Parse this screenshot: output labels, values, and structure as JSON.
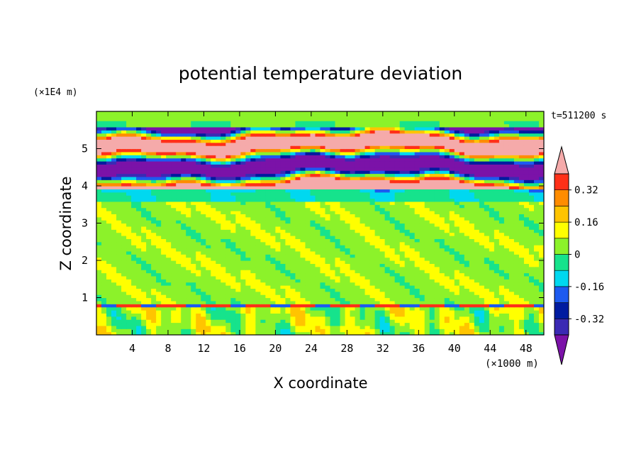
{
  "chart_data": {
    "type": "heatmap",
    "title": "potential temperature deviation",
    "xlabel": "X coordinate",
    "ylabel": "Z coordinate",
    "x_unit": "(×1000 m)",
    "y_unit": "(×1E4 m)",
    "time_label": "t=511200 s",
    "xlim": [
      0,
      50
    ],
    "ylim": [
      0,
      6
    ],
    "x_ticks": [
      4,
      8,
      12,
      16,
      20,
      24,
      28,
      32,
      36,
      40,
      44,
      48
    ],
    "y_ticks": [
      1,
      2,
      3,
      4,
      5
    ],
    "colorbar": {
      "levels": [
        -0.4,
        -0.32,
        -0.24,
        -0.16,
        -0.08,
        0,
        0.08,
        0.16,
        0.24,
        0.32,
        0.4
      ],
      "tick_labels": [
        "0.32",
        "0.16",
        "0",
        "-0.16",
        "-0.32"
      ],
      "tick_values": [
        0.32,
        0.16,
        0,
        -0.16,
        -0.32
      ],
      "colors_bottom_to_top": [
        "#7B12A8",
        "#3B2AB4",
        "#001BA0",
        "#1D5AF0",
        "#00D8F0",
        "#16E38C",
        "#8CF22A",
        "#FFFF00",
        "#FFC400",
        "#FF8C00",
        "#FF3018",
        "#F5AAAA"
      ],
      "extend": "both"
    },
    "bands": [
      {
        "z_from": 0.0,
        "z_to": 0.8,
        "pattern": "turbulent",
        "dominant": "#8CF22A",
        "secondary": [
          "#16E38C",
          "#FFFF00",
          "#00D8F0"
        ]
      },
      {
        "z_from": 0.8,
        "z_to": 0.85,
        "pattern": "thin inversion line",
        "dominant": "#FF3018",
        "secondary": [
          "#1D5AF0",
          "#001BA0"
        ]
      },
      {
        "z_from": 0.85,
        "z_to": 3.7,
        "pattern": "wavy layers",
        "dominant": "#8CF22A",
        "secondary": [
          "#16E38C"
        ]
      },
      {
        "z_from": 3.7,
        "z_to": 4.0,
        "pattern": "stable layer",
        "dominant": "#16E38C",
        "secondary": [
          "#00D8F0",
          "#1D5AF0"
        ]
      },
      {
        "z_from": 4.0,
        "z_to": 5.5,
        "pattern": "alternating strong deviation layers",
        "dominant": "#7B12A8",
        "secondary": [
          "#F5AAAA",
          "#FF3018"
        ]
      },
      {
        "z_from": 5.5,
        "z_to": 6.0,
        "pattern": "upper smooth",
        "dominant": "#16E38C",
        "secondary": [
          "#8CF22A"
        ]
      }
    ]
  }
}
